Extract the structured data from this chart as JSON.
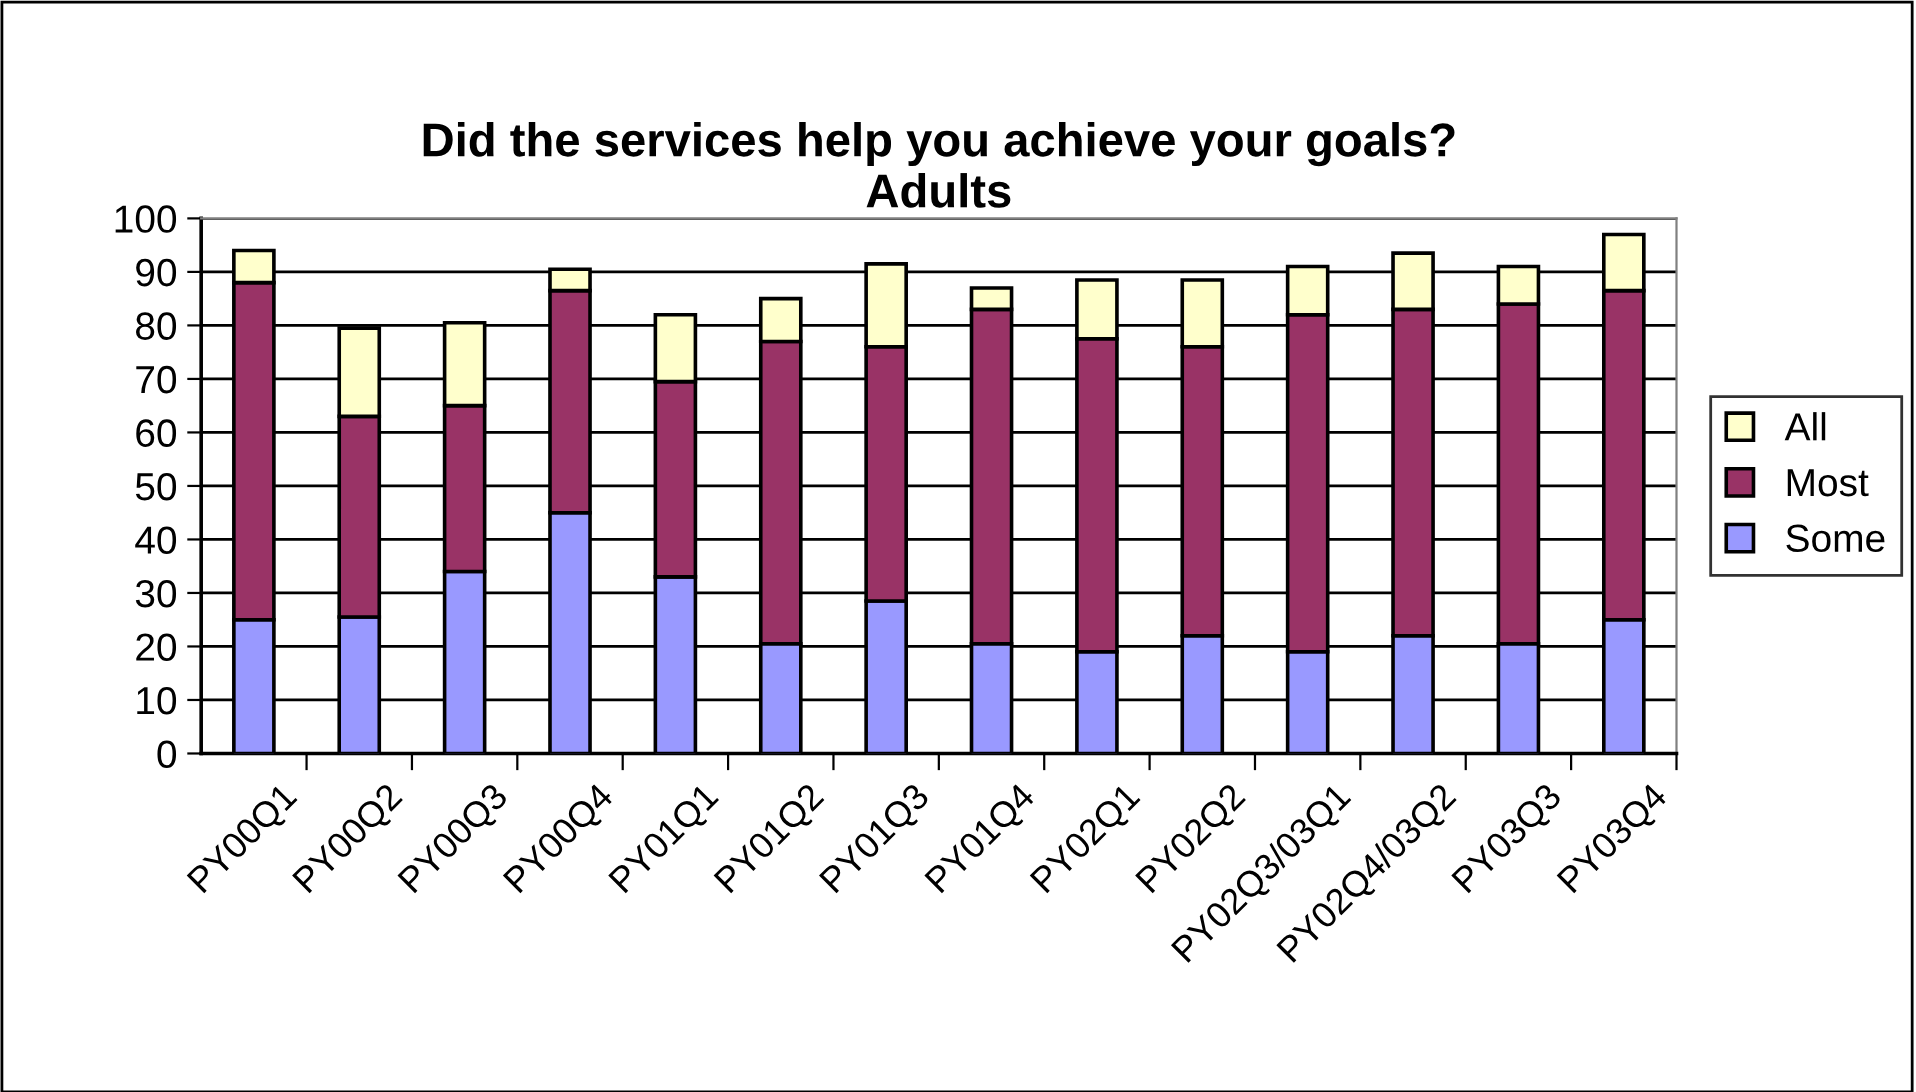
{
  "chart_data": {
    "type": "bar",
    "title": "Did the services help you achieve your goals?\nAdults",
    "categories": [
      "PY00Q1",
      "PY00Q2",
      "PY00Q3",
      "PY00Q4",
      "PY01Q1",
      "PY01Q2",
      "PY01Q3",
      "PY01Q4",
      "PY02Q1",
      "PY02Q2",
      "PY02Q3/03Q1",
      "PY02Q4/03Q2",
      "PY03Q3",
      "PY03Q4"
    ],
    "series": [
      {
        "name": "Some",
        "color": "#9999ff",
        "values": [
          25,
          25.5,
          34,
          45,
          33,
          20.5,
          28.5,
          20.5,
          19,
          22,
          19,
          22,
          20.5,
          25
        ]
      },
      {
        "name": "Most",
        "color": "#993366",
        "values": [
          63,
          37.5,
          31,
          41.5,
          36.5,
          56.5,
          47.5,
          62.5,
          58.5,
          54,
          63,
          61,
          63.5,
          61.5
        ]
      },
      {
        "name": "All",
        "color": "#ffffcc",
        "values": [
          6,
          16.5,
          15.5,
          4,
          12.5,
          8,
          15.5,
          4,
          11,
          12.5,
          9,
          10.5,
          7,
          10.5
        ]
      }
    ],
    "stacked": true,
    "ylim": [
      0,
      100
    ],
    "yticks": [
      0,
      10,
      20,
      30,
      40,
      50,
      60,
      70,
      80,
      90,
      100
    ],
    "grid": "y",
    "legend": "right"
  }
}
